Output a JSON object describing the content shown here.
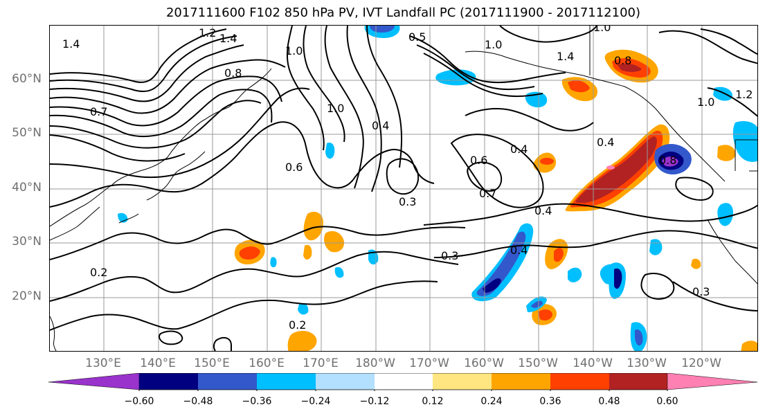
{
  "title": "2017111600 F102 850 hPa PV, IVT Landfall PC (2017111900 - 2017112100)",
  "lat_labels": [
    "60°N",
    "50°N",
    "40°N",
    "30°N",
    "20°N"
  ],
  "lon_labels": [
    "130°E",
    "140°E",
    "150°E",
    "160°E",
    "170°E",
    "180°W",
    "170°W",
    "160°W",
    "150°W",
    "140°W",
    "130°W",
    "120°W"
  ],
  "contour_labels": [
    "1.4",
    "1.2",
    "1.4",
    "1.0",
    "0.8",
    "0.5",
    "1.0",
    "0.8",
    "1.4",
    "1.0",
    "0.7",
    "1.0",
    "0.4",
    "0.4",
    "0.6",
    "0.4",
    "0.7",
    "0.3",
    "0.6",
    "0.4",
    "0.8",
    "0.4",
    "0.3",
    "0.2",
    "0.3",
    "0.2",
    "1.0",
    "1.2"
  ],
  "colorbar": {
    "ticks": [
      "−0.60",
      "−0.48",
      "−0.36",
      "−0.24",
      "−0.12",
      "0.12",
      "0.24",
      "0.36",
      "0.48",
      "0.60"
    ],
    "colors": [
      "#9933cc",
      "#000080",
      "#3358cc",
      "#00bfff",
      "#b3e0ff",
      "#ffffff",
      "#ffe680",
      "#ffa500",
      "#ff4000",
      "#b22222",
      "#ff80b3"
    ]
  },
  "colors": {
    "grid": "#999999",
    "coast": "#000000",
    "contour": "#000000",
    "axis_label": "#6f6f6f"
  }
}
